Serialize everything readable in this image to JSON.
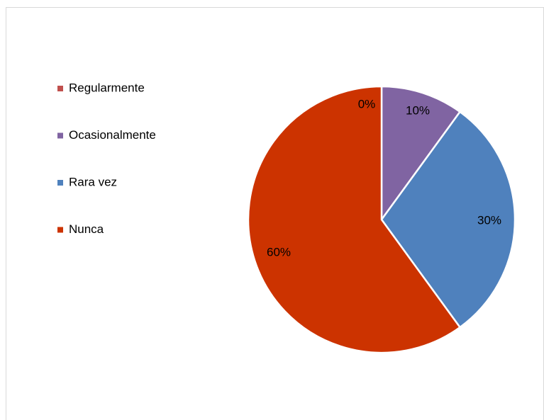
{
  "chart_data": {
    "type": "pie",
    "categories": [
      "Regularmente",
      "Ocasionalmente",
      "Rara vez",
      "Nunca"
    ],
    "values": [
      0,
      10,
      30,
      60
    ],
    "value_labels": [
      "0%",
      "10%",
      "30%",
      "60%"
    ],
    "colors": [
      "#c0504d",
      "#8064a2",
      "#4f81bd",
      "#cc3300"
    ],
    "legend": "left"
  }
}
